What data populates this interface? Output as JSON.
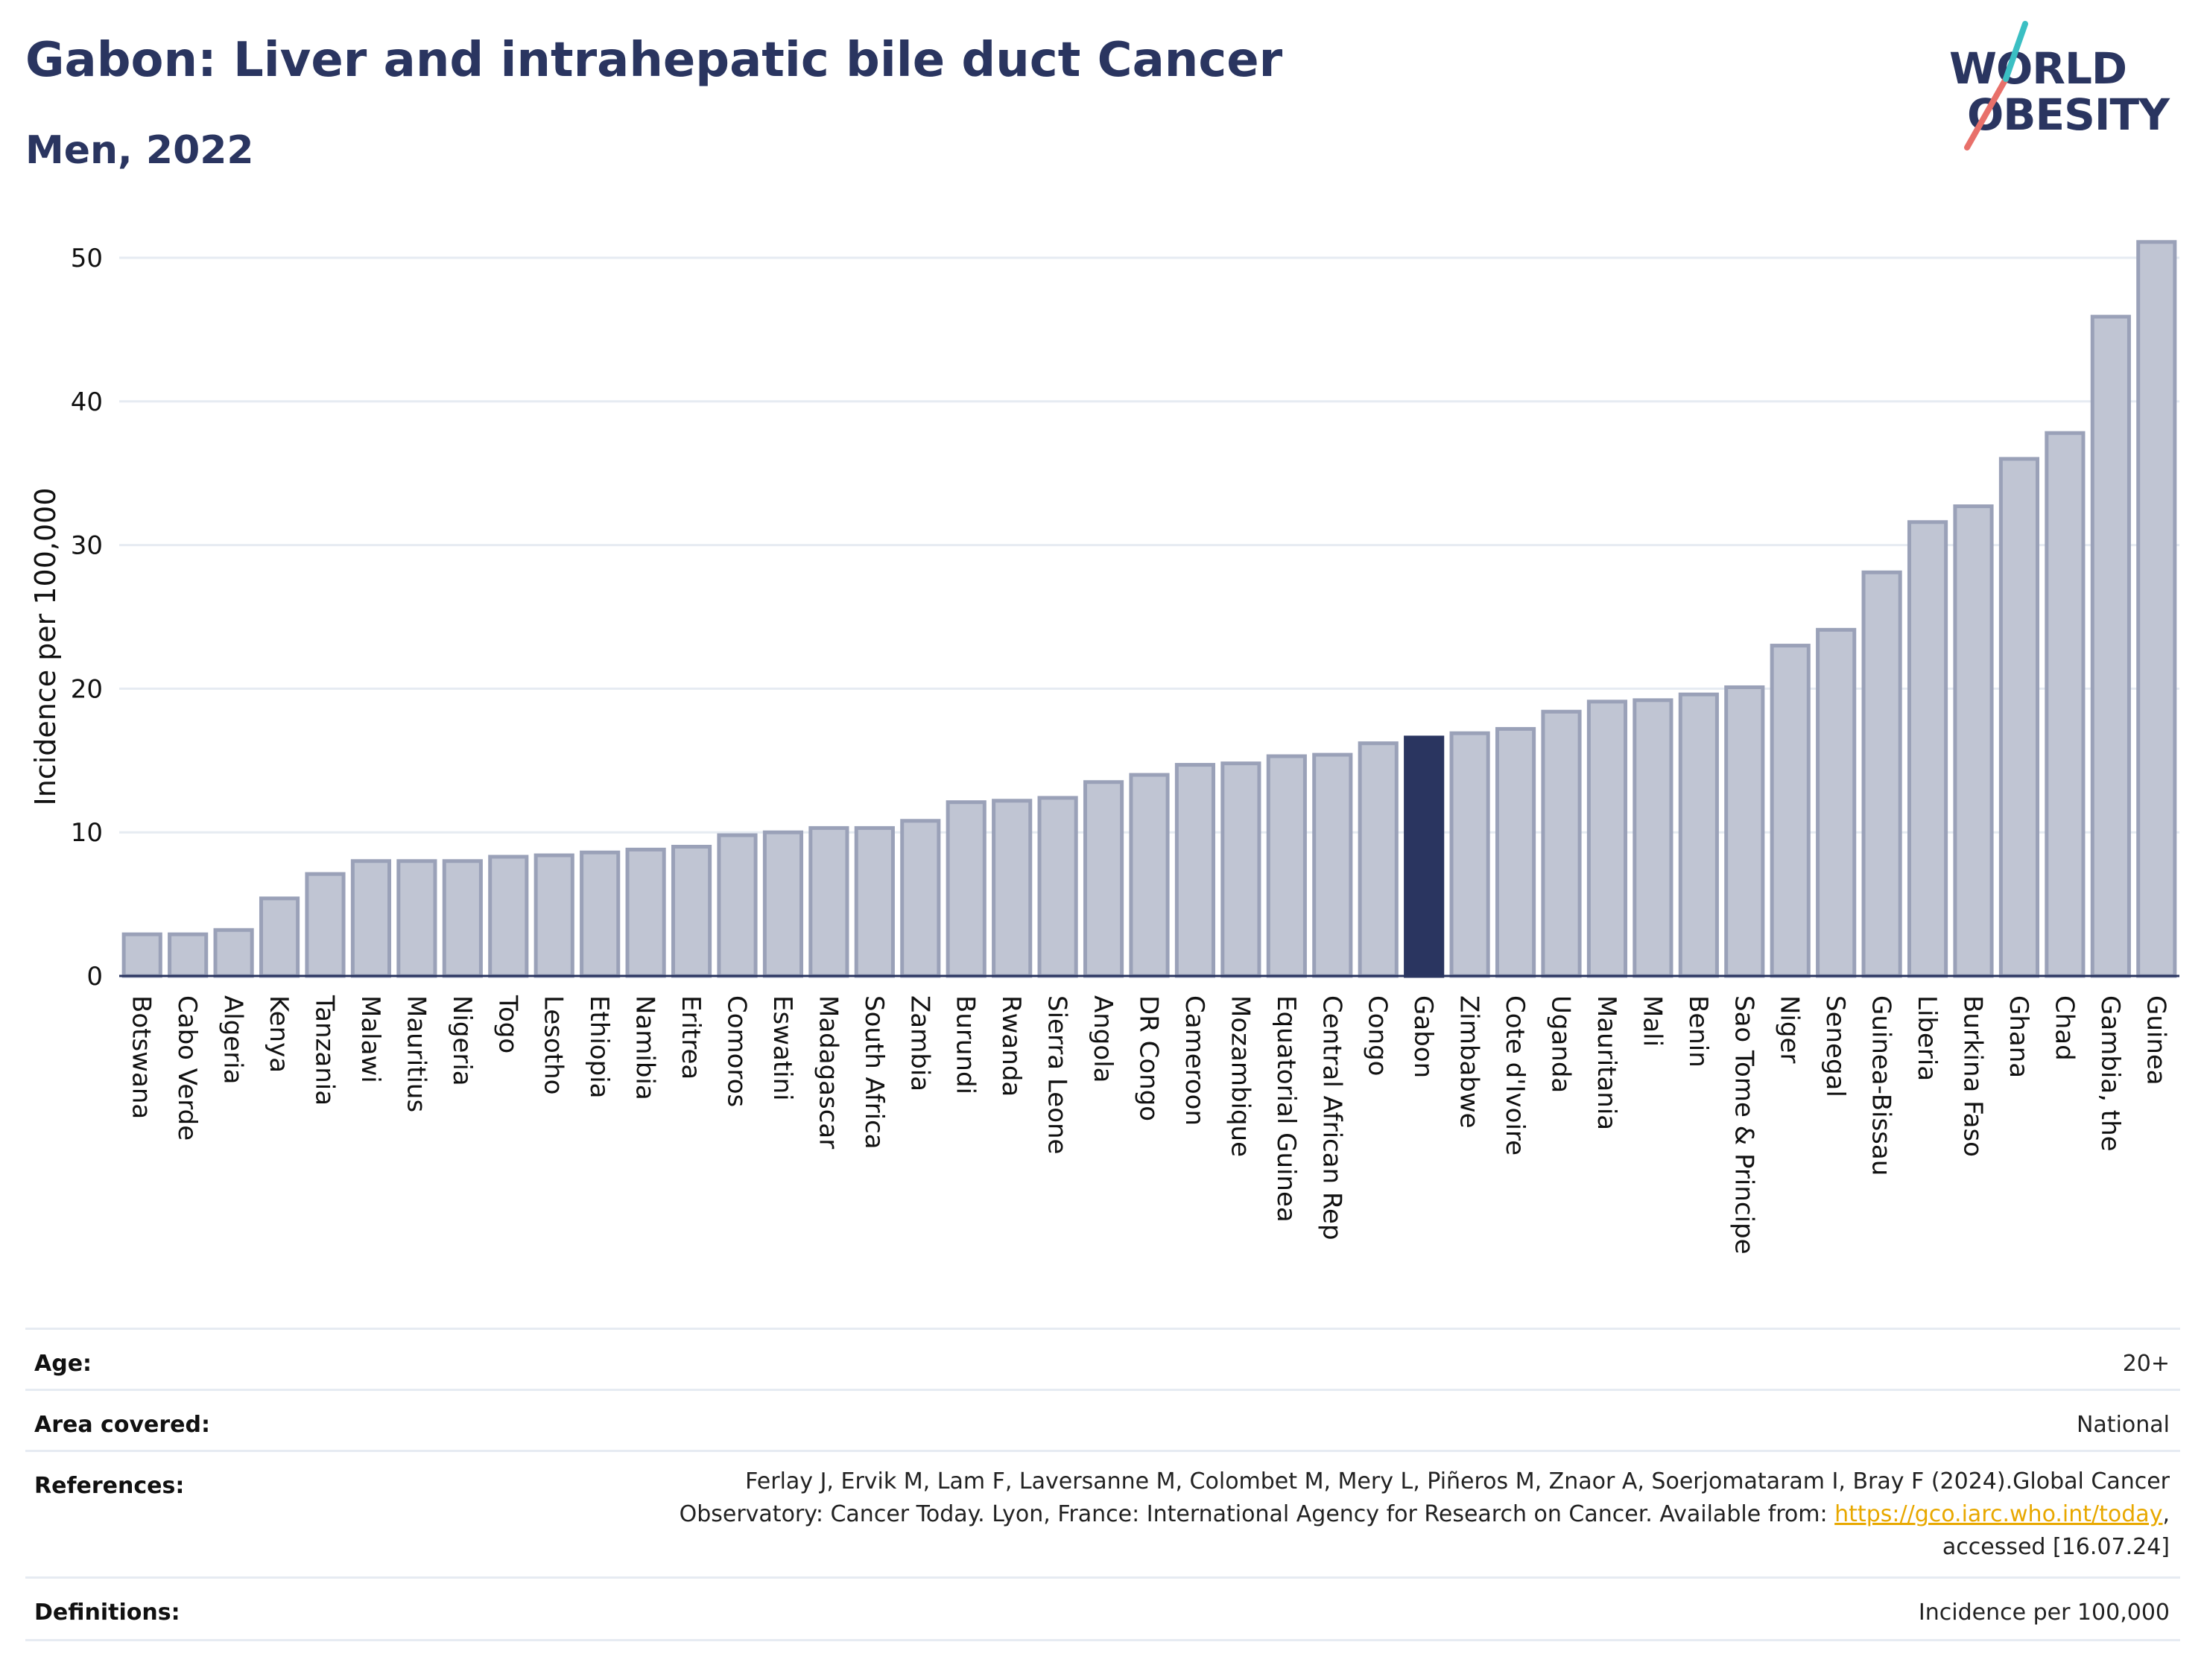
{
  "header": {
    "title": "Gabon: Liver and intrahepatic bile duct Cancer",
    "subtitle": "Men, 2022"
  },
  "logo": {
    "line1": "WORLD",
    "line2": "OBESITY",
    "accent_teal": "#3bbfc3",
    "accent_coral": "#e8706a"
  },
  "colors": {
    "bar_default": "#c0c5d3",
    "bar_default_stroke": "#9aa1b8",
    "bar_highlight": "#2a3560",
    "axis_text": "#111111"
  },
  "chart_data": {
    "type": "bar",
    "ylabel": "Incidence per 100,000",
    "xlabel": "",
    "ylim": [
      0,
      52
    ],
    "yticks": [
      0,
      10,
      20,
      30,
      40,
      50
    ],
    "grid": true,
    "highlight": "Gabon",
    "categories": [
      "Botswana",
      "Cabo Verde",
      "Algeria",
      "Kenya",
      "Tanzania",
      "Malawi",
      "Mauritius",
      "Nigeria",
      "Togo",
      "Lesotho",
      "Ethiopia",
      "Namibia",
      "Eritrea",
      "Comoros",
      "Eswatini",
      "Madagascar",
      "South Africa",
      "Zambia",
      "Burundi",
      "Rwanda",
      "Sierra Leone",
      "Angola",
      "DR Congo",
      "Cameroon",
      "Mozambique",
      "Equatorial Guinea",
      "Central African Rep",
      "Congo",
      "Gabon",
      "Zimbabwe",
      "Cote d'Ivoire",
      "Uganda",
      "Mauritania",
      "Mali",
      "Benin",
      "Sao Tome & Principe",
      "Niger",
      "Senegal",
      "Guinea-Bissau",
      "Liberia",
      "Burkina Faso",
      "Ghana",
      "Chad",
      "Gambia, the",
      "Guinea"
    ],
    "values": [
      2.9,
      2.9,
      3.2,
      5.4,
      7.1,
      8.0,
      8.0,
      8.0,
      8.3,
      8.4,
      8.6,
      8.8,
      9.0,
      9.8,
      10.0,
      10.3,
      10.3,
      10.8,
      12.1,
      12.2,
      12.4,
      13.5,
      14.0,
      14.7,
      14.8,
      15.3,
      15.4,
      16.2,
      16.6,
      16.9,
      17.2,
      18.4,
      19.1,
      19.2,
      19.6,
      20.1,
      23.0,
      24.1,
      28.1,
      31.6,
      32.7,
      36.0,
      37.8,
      45.9,
      51.1
    ]
  },
  "meta": {
    "age_label": "Age:",
    "age_value": "20+",
    "area_label": "Area covered:",
    "area_value": "National",
    "references_label": "References:",
    "references_line1": "Ferlay J, Ervik M, Lam F, Laversanne M, Colombet M, Mery L, Piñeros M, Znaor A, Soerjomataram I, Bray F (2024).Global Cancer",
    "references_line2_prefix": "Observatory: Cancer Today. Lyon, France: International Agency for Research on Cancer. Available from: ",
    "references_link": "https://gco.iarc.who.int/today",
    "references_line2_suffix": ",",
    "references_line3": "accessed [16.07.24]",
    "definitions_label": "Definitions:",
    "definitions_value": "Incidence per 100,000"
  }
}
